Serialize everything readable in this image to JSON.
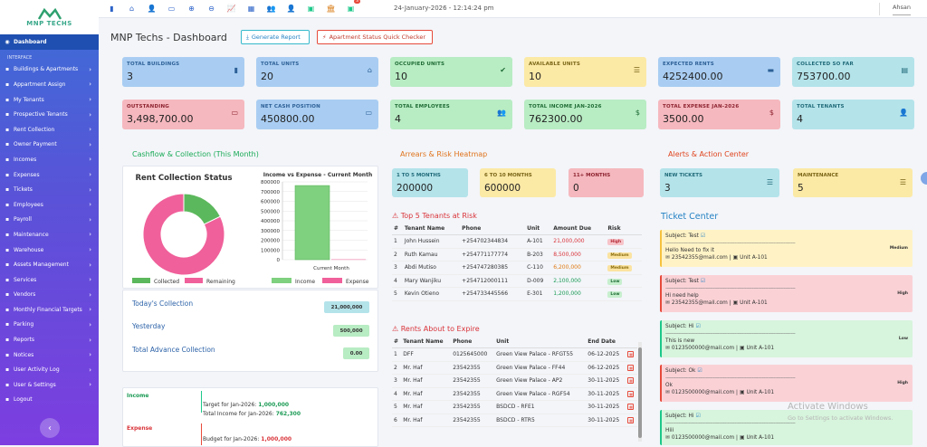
{
  "logo": {
    "text": "MNP TECHS"
  },
  "sidebar": {
    "dashboard": "Dashboard",
    "section": "INTERFACE",
    "items": [
      {
        "label": "Buildings & Apartments",
        "icon": "building-icon"
      },
      {
        "label": "Appartment Assign",
        "icon": "assign-icon"
      },
      {
        "label": "My Tenants",
        "icon": "users-icon"
      },
      {
        "label": "Prospective Tenants",
        "icon": "user-plus-icon"
      },
      {
        "label": "Rent Collection",
        "icon": "money-icon"
      },
      {
        "label": "Owner Payment",
        "icon": "wallet-icon"
      },
      {
        "label": "Incomes",
        "icon": "income-icon"
      },
      {
        "label": "Expenses",
        "icon": "expense-icon"
      },
      {
        "label": "Tickets",
        "icon": "ticket-icon"
      },
      {
        "label": "Employees",
        "icon": "employees-icon"
      },
      {
        "label": "Payroll",
        "icon": "dollar-icon"
      },
      {
        "label": "Maintenance",
        "icon": "wrench-icon"
      },
      {
        "label": "Warehouse",
        "icon": "warehouse-icon"
      },
      {
        "label": "Assets Management",
        "icon": "assets-icon"
      },
      {
        "label": "Services",
        "icon": "services-icon"
      },
      {
        "label": "Vendors",
        "icon": "vendors-icon"
      },
      {
        "label": "Monthly Financial Targets",
        "icon": "target-icon"
      },
      {
        "label": "Parking",
        "icon": "parking-icon"
      },
      {
        "label": "Reports",
        "icon": "reports-icon"
      },
      {
        "label": "Notices",
        "icon": "bell-icon"
      },
      {
        "label": "User Activity Log",
        "icon": "log-icon"
      },
      {
        "label": "User & Settings",
        "icon": "settings-icon"
      },
      {
        "label": "Logout",
        "icon": "logout-icon"
      }
    ],
    "collapse_icon": "‹"
  },
  "topbar": {
    "datetime": "24-January-2026 - 12:14:24 pm",
    "user": "Ahsan",
    "badge": "3"
  },
  "page": {
    "title": "MNP Techs - Dashboard",
    "generate_report": "Generate Report",
    "status_checker": "Apartment Status Quick Checker"
  },
  "cards": [
    {
      "label": "TOTAL BUILDINGS",
      "value": "3",
      "color": "c-blue",
      "icon": "▮"
    },
    {
      "label": "TOTAL UNITS",
      "value": "20",
      "color": "c-blue",
      "icon": "⌂"
    },
    {
      "label": "OCCUPIED UNITS",
      "value": "10",
      "color": "c-green",
      "icon": "✔"
    },
    {
      "label": "AVAILABLE UNITS",
      "value": "10",
      "color": "c-yellow",
      "icon": "☰"
    },
    {
      "label": "EXPECTED RENTS",
      "value": "4252400.00",
      "color": "c-blue",
      "icon": "▬"
    },
    {
      "label": "COLLECTED SO FAR",
      "value": "753700.00",
      "color": "c-cyan",
      "icon": "▤"
    },
    {
      "label": "OUTSTANDING",
      "value": "3,498,700.00",
      "color": "c-red",
      "icon": "▭"
    },
    {
      "label": "NET CASH POSITION",
      "value": "450800.00",
      "color": "c-blue",
      "icon": "▭"
    },
    {
      "label": "TOTAL EMPLOYEES",
      "value": "4",
      "color": "c-green",
      "icon": "👥"
    },
    {
      "label": "TOTAL INCOME JAN-2026",
      "value": "762300.00",
      "color": "c-green",
      "icon": "$"
    },
    {
      "label": "TOTAL EXPENSE JAN-2026",
      "value": "3500.00",
      "color": "c-red",
      "icon": "$"
    },
    {
      "label": "TOTAL TENANTS",
      "value": "4",
      "color": "c-cyan",
      "icon": "👤"
    }
  ],
  "sections": {
    "cashflow": "Cashflow & Collection (This Month)",
    "arrears": "Arrears & Risk Heatmap",
    "alerts": "Alerts & Action Center",
    "top_tenants": "Top 5 Tenants at Risk",
    "rents_expire": "Rents About to Expire",
    "ticket_center": "Ticket Center"
  },
  "chart_data": [
    {
      "type": "pie",
      "title": "Rent Collection Status",
      "labels": [
        "Collected",
        "Remaining"
      ],
      "values": [
        753700,
        3498700
      ],
      "colors": [
        "#5cb85c",
        "#f0609a"
      ],
      "legend": "bottom"
    },
    {
      "type": "bar",
      "title": "Income vs Expense - Current Month",
      "categories": [
        "Current Month"
      ],
      "series": [
        {
          "name": "Income",
          "values": [
            762300
          ],
          "color": "#7fd07f"
        },
        {
          "name": "Expense",
          "values": [
            3500
          ],
          "color": "#f0609a"
        }
      ],
      "yticks": [
        "800000",
        "700000",
        "600000",
        "500000",
        "400000",
        "300000",
        "200000",
        "100000",
        "0"
      ],
      "ylim": [
        0,
        800000
      ],
      "legend": "bottom"
    }
  ],
  "collection": {
    "today_label": "Today's Collection",
    "today_value": "21,000,000",
    "yesterday_label": "Yesterday",
    "yesterday_value": "500,000",
    "advance_label": "Total Advance Collection",
    "advance_value": "0.00"
  },
  "targets": {
    "income_label": "Income",
    "income_target": "Target for Jan-2026:",
    "income_target_value": "1,000,000",
    "income_total": "Total Income for Jan-2026:",
    "income_total_value": "762,300",
    "expense_label": "Expense",
    "expense_budget": "Budget for Jan-2026:",
    "expense_budget_value": "1,000,000"
  },
  "arrears": [
    {
      "label": "1 TO 5 MONTHS",
      "value": "200000",
      "color": "c-cyan"
    },
    {
      "label": "6 TO 10 MONTHS",
      "value": "600000",
      "color": "c-yellow"
    },
    {
      "label": "11+ MONTHS",
      "value": "0",
      "color": "c-red"
    }
  ],
  "alerts": [
    {
      "label": "NEW TICKETS",
      "value": "3",
      "color": "c-cyan",
      "icon": "☰"
    },
    {
      "label": "MAINTENANCE",
      "value": "5",
      "color": "c-yellow",
      "icon": "☰"
    }
  ],
  "risk_table": {
    "headers": [
      "#",
      "Tenant Name",
      "Phone",
      "Unit",
      "Amount Due",
      "Risk"
    ],
    "rows": [
      {
        "n": "1",
        "name": "John Hussein",
        "phone": "+254702344834",
        "unit": "A-101",
        "amount": "21,000,000",
        "risk": "High",
        "cls": "r-high",
        "amt": "amt-red"
      },
      {
        "n": "2",
        "name": "Ruth Kamau",
        "phone": "+254771177774",
        "unit": "B-203",
        "amount": "8,500,000",
        "risk": "Medium",
        "cls": "r-medium",
        "amt": "amt-red"
      },
      {
        "n": "3",
        "name": "Abdi Mutiso",
        "phone": "+254747280385",
        "unit": "C-110",
        "amount": "6,200,000",
        "risk": "Medium",
        "cls": "r-medium",
        "amt": "amt-orange"
      },
      {
        "n": "4",
        "name": "Mary Wanjiku",
        "phone": "+254712000111",
        "unit": "D-009",
        "amount": "2,100,000",
        "risk": "Low",
        "cls": "r-low",
        "amt": "amt-green"
      },
      {
        "n": "5",
        "name": "Kevin Otieno",
        "phone": "+254733445566",
        "unit": "E-301",
        "amount": "1,200,000",
        "risk": "Low",
        "cls": "r-low",
        "amt": "amt-green"
      }
    ]
  },
  "expire_table": {
    "headers": [
      "#",
      "Tenant Name",
      "Phone",
      "Unit",
      "End Date"
    ],
    "rows": [
      {
        "n": "1",
        "name": "DFF",
        "phone": "0125645000",
        "unit": "Green View Palace - RFGT55",
        "date": "06-12-2025"
      },
      {
        "n": "2",
        "name": "Mr. Haf",
        "phone": "23542355",
        "unit": "Green View Palace - FF44",
        "date": "06-12-2025"
      },
      {
        "n": "3",
        "name": "Mr. Haf",
        "phone": "23542355",
        "unit": "Green View Palace - AP2",
        "date": "30-11-2025"
      },
      {
        "n": "4",
        "name": "Mr. Haf",
        "phone": "23542355",
        "unit": "Green View Palace - RGF54",
        "date": "30-11-2025"
      },
      {
        "n": "5",
        "name": "Mr. Haf",
        "phone": "23542355",
        "unit": "BSDCD - RFE1",
        "date": "30-11-2025"
      },
      {
        "n": "6",
        "name": "Mr. Haf",
        "phone": "23542355",
        "unit": "BSDCD - RTR5",
        "date": "30-11-2025"
      }
    ]
  },
  "tickets": [
    {
      "subject": "Subject: Test",
      "body": "Hello Need to fix it",
      "contact": "23542355@mail.com |",
      "unit": "Unit A-101",
      "priority": "Medium",
      "cls": "t-yellow"
    },
    {
      "subject": "Subject: Test",
      "body": "Hi need help",
      "contact": "23542355@mail.com |",
      "unit": "Unit A-101",
      "priority": "High",
      "cls": "t-red"
    },
    {
      "subject": "Subject: Hi",
      "body": "This is new",
      "contact": "0123500000@mail.com |",
      "unit": "Unit A-101",
      "priority": "Low",
      "cls": "t-green"
    },
    {
      "subject": "Subject: Ok",
      "body": "Ok",
      "contact": "0123500000@mail.com |",
      "unit": "Unit A-101",
      "priority": "High",
      "cls": "t-red"
    },
    {
      "subject": "Subject: Hi",
      "body": "Hiii",
      "contact": "0123500000@mail.com |",
      "unit": "Unit A-101",
      "priority": "",
      "cls": "t-green"
    }
  ],
  "watermark": {
    "title": "Activate Windows",
    "sub": "Go to Settings to activate Windows."
  }
}
